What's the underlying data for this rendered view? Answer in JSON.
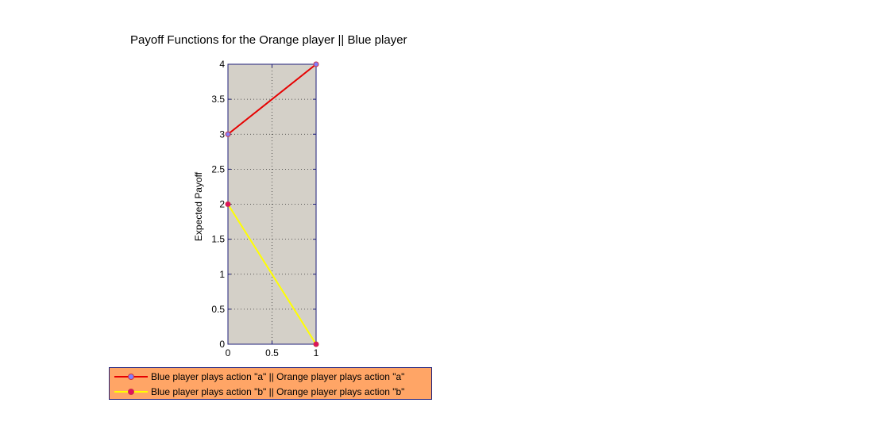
{
  "chart_data": {
    "type": "line",
    "title": "Payoff Functions for the Orange player || Blue player",
    "xlabel": "",
    "ylabel": "Expected Payoff",
    "xlim": [
      0,
      1
    ],
    "ylim": [
      0,
      4
    ],
    "x_ticks": [
      "0",
      "0.5",
      "1"
    ],
    "y_ticks": [
      "0",
      "0.5",
      "1",
      "1.5",
      "2",
      "2.5",
      "3",
      "3.5",
      "4"
    ],
    "grid": true,
    "grid_style": "dotted",
    "legend_position": "below",
    "plot_background": "#d4d0c8",
    "series": [
      {
        "name": "Blue player plays action \"a\" || Orange player plays action \"a\"",
        "x": [
          0,
          1
        ],
        "y": [
          3,
          4
        ],
        "line_color": "#e60000",
        "marker_face": "#8080ff",
        "marker_edge": "#cc3344"
      },
      {
        "name": "Blue player plays action \"b\" || Orange player plays action \"b\"",
        "x": [
          0,
          1
        ],
        "y": [
          2,
          0
        ],
        "line_color": "#ffff00",
        "marker_face": "#e0115f",
        "marker_edge": "#cc3344"
      }
    ]
  }
}
